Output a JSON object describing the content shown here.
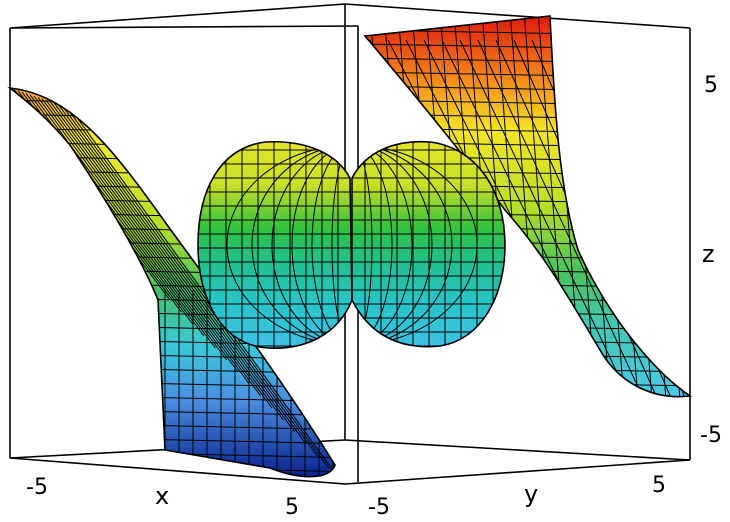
{
  "chart_data": {
    "type": "3d-surface",
    "axes": {
      "x": {
        "label": "x",
        "ticks": [
          "-5",
          "5"
        ]
      },
      "y": {
        "label": "y",
        "ticks": [
          "-5",
          "5"
        ]
      },
      "z": {
        "label": "z",
        "ticks": [
          "5",
          "-5"
        ]
      }
    },
    "colormap": "jet (blue low → red high)",
    "mesh": true,
    "box": true
  }
}
